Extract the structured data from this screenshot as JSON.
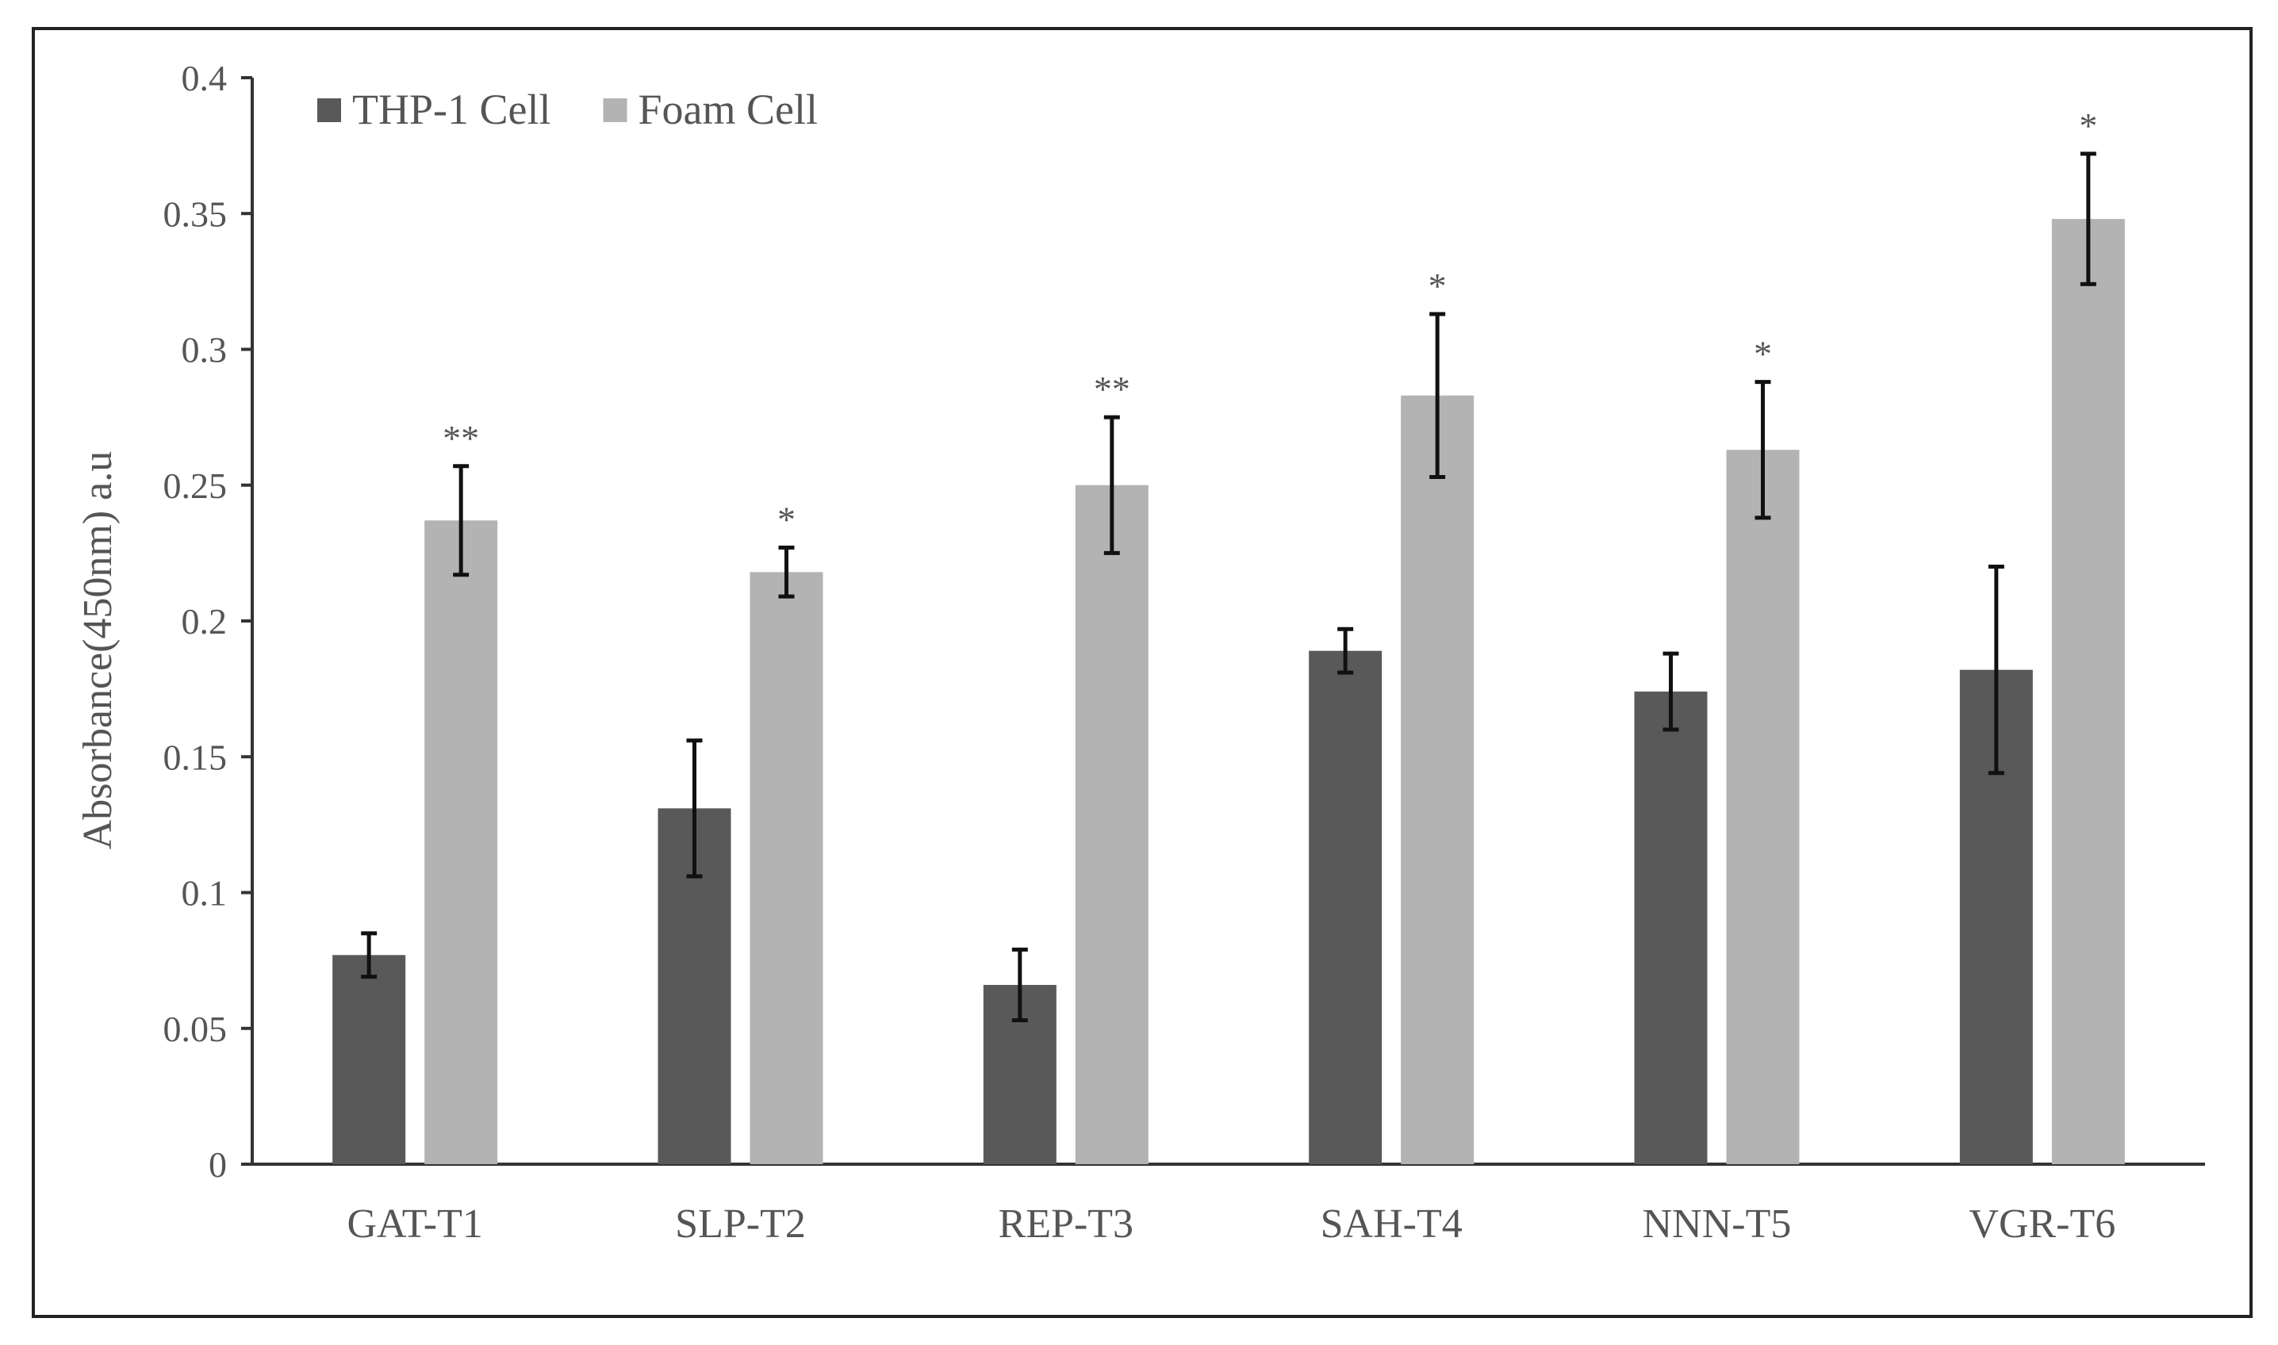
{
  "chart_data": {
    "type": "bar",
    "title": "",
    "xlabel": "",
    "ylabel": "Absorbance(450nm) a.u",
    "ylim": [
      0,
      0.4
    ],
    "yticks": [
      "0",
      "0.05",
      "0.1",
      "0.15",
      "0.2",
      "0.25",
      "0.3",
      "0.35",
      "0.4"
    ],
    "categories": [
      "GAT-T1",
      "SLP-T2",
      "REP-T3",
      "SAH-T4",
      "NNN-T5",
      "VGR-T6"
    ],
    "legend_position": "top-left",
    "series": [
      {
        "name": "THP-1 Cell",
        "color": "#595959",
        "values": [
          0.077,
          0.131,
          0.066,
          0.189,
          0.174,
          0.182
        ],
        "errors": [
          0.008,
          0.025,
          0.013,
          0.008,
          0.014,
          0.038
        ],
        "annotations": [
          "",
          "",
          "",
          "",
          "",
          ""
        ]
      },
      {
        "name": "Foam Cell",
        "color": "#b3b3b3",
        "values": [
          0.237,
          0.218,
          0.25,
          0.283,
          0.263,
          0.348
        ],
        "errors": [
          0.02,
          0.009,
          0.025,
          0.03,
          0.025,
          0.024
        ],
        "annotations": [
          "**",
          "*",
          "**",
          "*",
          "*",
          "*"
        ]
      }
    ]
  }
}
